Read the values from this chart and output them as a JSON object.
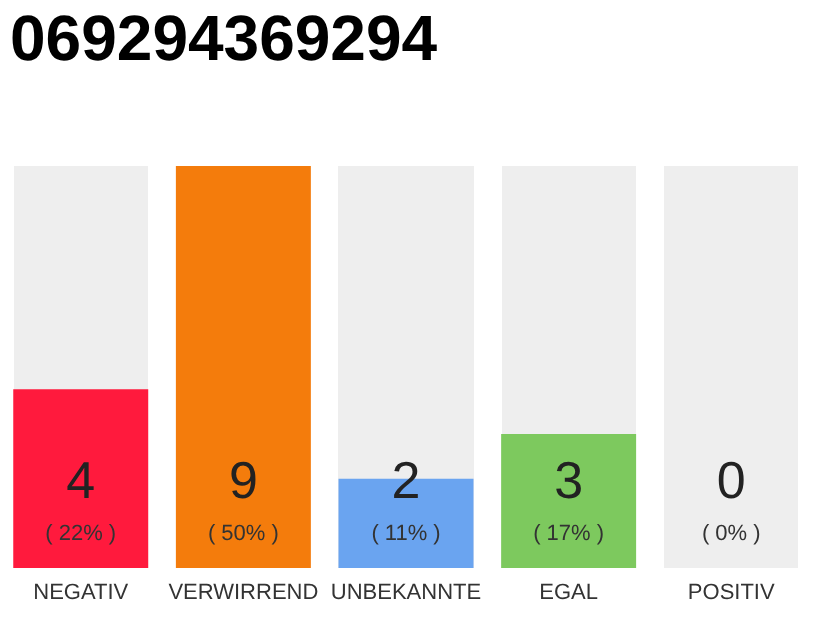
{
  "chart_data": {
    "type": "bar",
    "title": "069294369294",
    "categories": [
      "NEGATIV",
      "VERWIRREND",
      "UNBEKANNTE",
      "EGAL",
      "POSITIV"
    ],
    "values": [
      4,
      9,
      2,
      3,
      0
    ],
    "colors": [
      "#ff1a3d",
      "#f47c0c",
      "#6aa4f0",
      "#7dc95e",
      "#cccccc"
    ],
    "value_labels": [
      "4",
      "9",
      "2",
      "3",
      "0"
    ],
    "annotations": [
      "( 22% )",
      "( 50% )",
      "( 11% )",
      "( 17% )",
      "( 0% )"
    ],
    "tick_labels": "x"
  }
}
